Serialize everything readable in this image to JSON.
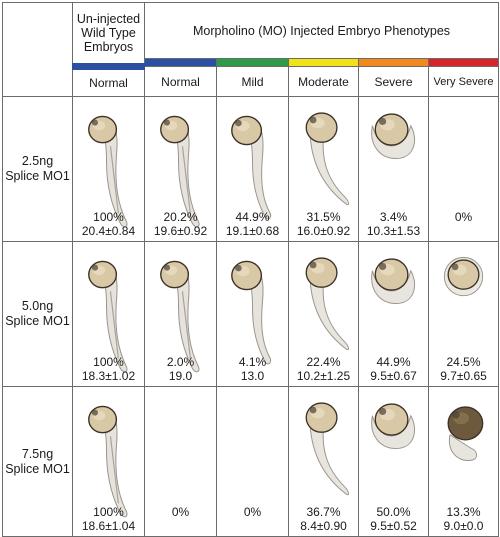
{
  "header": {
    "wildtype_lines": [
      "Un-injected",
      "Wild Type",
      "Embryos"
    ],
    "mo_title": "Morpholino (MO) Injected Embryo Phenotypes"
  },
  "phenotypes": [
    "Normal",
    "Normal",
    "Mild",
    "Moderate",
    "Severe",
    "Very Severe"
  ],
  "bar_colors": [
    "#2b4fa3",
    "#2b4fa3",
    "#2e9b48",
    "#f2e21a",
    "#f08a1e",
    "#d7262b"
  ],
  "rows": [
    {
      "label_lines": [
        "2.5ng",
        "Splice MO1"
      ],
      "cells": [
        {
          "pct": "100%",
          "val": "20.4±0.84",
          "embryo": "normal"
        },
        {
          "pct": "20.2%",
          "val": "19.6±0.92",
          "embryo": "normal"
        },
        {
          "pct": "44.9%",
          "val": "19.1±0.68",
          "embryo": "mild"
        },
        {
          "pct": "31.5%",
          "val": "16.0±0.92",
          "embryo": "moderate"
        },
        {
          "pct": "3.4%",
          "val": "10.3±1.53",
          "embryo": "severe"
        },
        {
          "pct": "0%",
          "val": "",
          "embryo": "none"
        }
      ]
    },
    {
      "label_lines": [
        "5.0ng",
        "Splice MO1"
      ],
      "cells": [
        {
          "pct": "100%",
          "val": "18.3±1.02",
          "embryo": "normal"
        },
        {
          "pct": "2.0%",
          "val": "19.0",
          "embryo": "normal"
        },
        {
          "pct": "4.1%",
          "val": "13.0",
          "embryo": "mild"
        },
        {
          "pct": "22.4%",
          "val": "10.2±1.25",
          "embryo": "moderate"
        },
        {
          "pct": "44.9%",
          "val": "9.5±0.67",
          "embryo": "severe"
        },
        {
          "pct": "24.5%",
          "val": "9.7±0.65",
          "embryo": "verysevere"
        }
      ]
    },
    {
      "label_lines": [
        "7.5ng",
        "Splice MO1"
      ],
      "cells": [
        {
          "pct": "100%",
          "val": "18.6±1.04",
          "embryo": "normal"
        },
        {
          "pct": "0%",
          "val": "",
          "embryo": "none"
        },
        {
          "pct": "0%",
          "val": "",
          "embryo": "none"
        },
        {
          "pct": "36.7%",
          "val": "8.4±0.90",
          "embryo": "moderate"
        },
        {
          "pct": "50.0%",
          "val": "9.5±0.52",
          "embryo": "severe"
        },
        {
          "pct": "13.3%",
          "val": "9.0±0.0",
          "embryo": "verysevere-dark"
        }
      ]
    }
  ]
}
